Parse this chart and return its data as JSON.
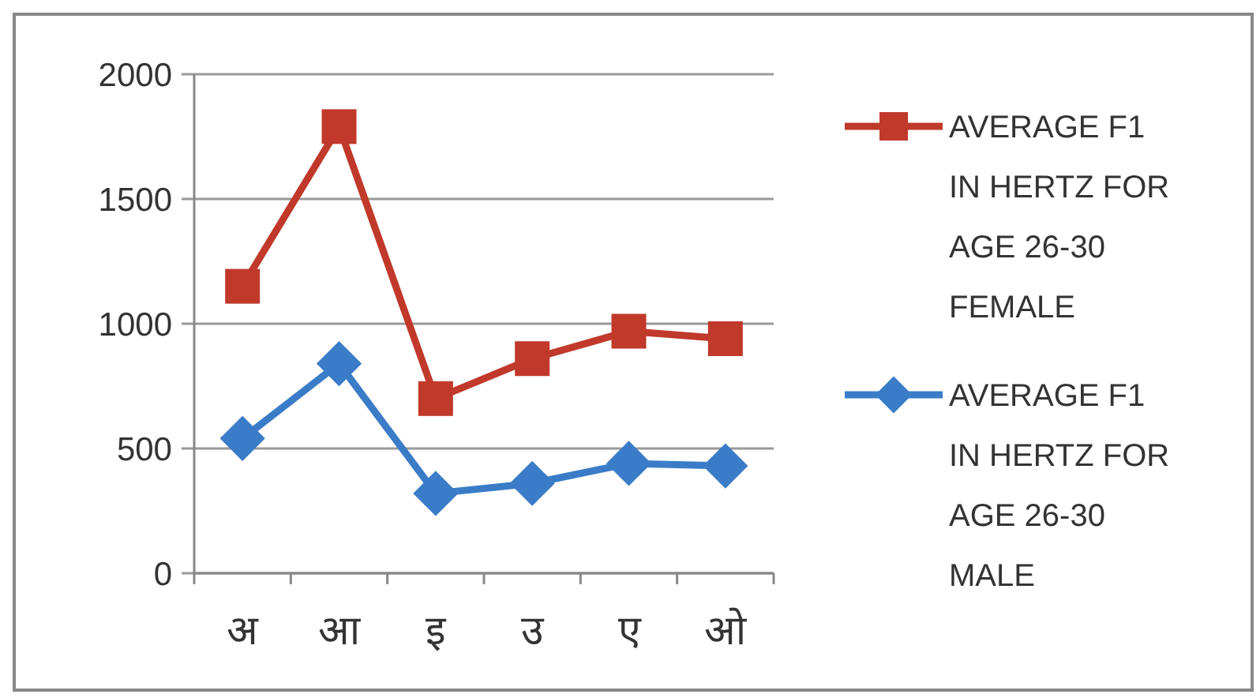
{
  "chart_data": {
    "type": "line",
    "categories": [
      "अ",
      "आ",
      "इ",
      "उ",
      "ए",
      "ओ"
    ],
    "series": [
      {
        "name": "AVERAGE F1 IN HERTZ FOR AGE 26-30 FEMALE",
        "color": "#c0392b",
        "marker": "square",
        "values": [
          1150,
          1790,
          700,
          860,
          970,
          940
        ]
      },
      {
        "name": "AVERAGE F1 IN HERTZ FOR AGE 26-30 MALE",
        "color": "#3a7cc7",
        "marker": "diamond",
        "values": [
          540,
          840,
          320,
          360,
          440,
          430
        ]
      }
    ],
    "ylim": [
      0,
      2000
    ],
    "yticks": [
      0,
      500,
      1000,
      1500,
      2000
    ],
    "grid": "y",
    "legend": "right"
  }
}
